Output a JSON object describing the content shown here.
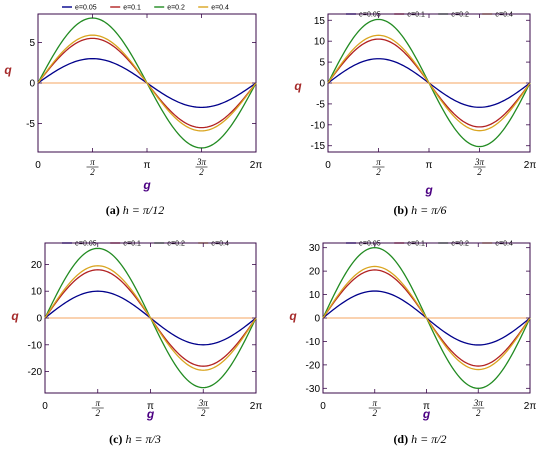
{
  "colors": {
    "axis_label": "#a52a2a",
    "x_axis_label": "#4b0082",
    "frame": "#3a0a4a",
    "zero_line": "#f4a460"
  },
  "chart_data": [
    {
      "type": "line",
      "caption_letter": "(a)",
      "caption_math": "h = π/12",
      "xlabel": "g",
      "ylabel": "q",
      "xlim": [
        0,
        6.2832
      ],
      "ylim": [
        -8.5,
        8.5
      ],
      "x_ticks": [
        0,
        1.5708,
        3.1416,
        4.7124,
        6.2832
      ],
      "x_tick_labels": [
        "0",
        "π/2",
        "π",
        "3π/2",
        "2π"
      ],
      "y_ticks": [
        -5,
        0,
        5
      ],
      "y_tick_labels": [
        "-5",
        "0",
        "5"
      ],
      "grid": false,
      "legend_position": "top",
      "series": [
        {
          "name": "e=0.05",
          "color": "#00008b",
          "amplitude": 3.0
        },
        {
          "name": "e=0.1",
          "color": "#b22222",
          "amplitude": 5.5
        },
        {
          "name": "e=0.2",
          "color": "#228b22",
          "amplitude": 8.0
        },
        {
          "name": "e=0.4",
          "color": "#daa520",
          "amplitude": 5.9
        }
      ]
    },
    {
      "type": "line",
      "caption_letter": "(b)",
      "caption_math": "h = π/6",
      "xlabel": "g",
      "ylabel": "q",
      "xlim": [
        0,
        6.2832
      ],
      "ylim": [
        -16.5,
        16.5
      ],
      "x_ticks": [
        0,
        1.5708,
        3.1416,
        4.7124,
        6.2832
      ],
      "x_tick_labels": [
        "0",
        "π/2",
        "π",
        "3π/2",
        "2π"
      ],
      "y_ticks": [
        -15,
        -10,
        -5,
        0,
        5,
        10,
        15
      ],
      "y_tick_labels": [
        "-15",
        "-10",
        "-5",
        "0",
        "5",
        "10",
        "15"
      ],
      "grid": false,
      "legend_position": "top",
      "series": [
        {
          "name": "e=0.05",
          "color": "#00008b",
          "amplitude": 5.8
        },
        {
          "name": "e=0.1",
          "color": "#b22222",
          "amplitude": 10.5
        },
        {
          "name": "e=0.2",
          "color": "#228b22",
          "amplitude": 15.2
        },
        {
          "name": "e=0.4",
          "color": "#daa520",
          "amplitude": 11.4
        }
      ]
    },
    {
      "type": "line",
      "caption_letter": "(c)",
      "caption_math": "h = π/3",
      "xlabel": "g",
      "ylabel": "q",
      "xlim": [
        0,
        6.2832
      ],
      "ylim": [
        -28,
        28
      ],
      "x_ticks": [
        0,
        1.5708,
        3.1416,
        4.7124,
        6.2832
      ],
      "x_tick_labels": [
        "0",
        "π/2",
        "π",
        "3π/2",
        "2π"
      ],
      "y_ticks": [
        -20,
        -10,
        0,
        10,
        20
      ],
      "y_tick_labels": [
        "-20",
        "-10",
        "0",
        "10",
        "20"
      ],
      "grid": false,
      "legend_position": "top",
      "series": [
        {
          "name": "e=0.05",
          "color": "#00008b",
          "amplitude": 10.0
        },
        {
          "name": "e=0.1",
          "color": "#b22222",
          "amplitude": 18.0
        },
        {
          "name": "e=0.2",
          "color": "#228b22",
          "amplitude": 26.0
        },
        {
          "name": "e=0.4",
          "color": "#daa520",
          "amplitude": 19.5
        }
      ]
    },
    {
      "type": "line",
      "caption_letter": "(d)",
      "caption_math": "h = π/2",
      "xlabel": "g",
      "ylabel": "q",
      "xlim": [
        0,
        6.2832
      ],
      "ylim": [
        -32,
        32
      ],
      "x_ticks": [
        0,
        1.5708,
        3.1416,
        4.7124,
        6.2832
      ],
      "x_tick_labels": [
        "0",
        "π/2",
        "π",
        "3π/2",
        "2π"
      ],
      "y_ticks": [
        -30,
        -20,
        -10,
        0,
        10,
        20,
        30
      ],
      "y_tick_labels": [
        "-30",
        "-20",
        "-10",
        "0",
        "10",
        "20",
        "30"
      ],
      "grid": false,
      "legend_position": "top",
      "series": [
        {
          "name": "e=0.05",
          "color": "#00008b",
          "amplitude": 11.5
        },
        {
          "name": "e=0.1",
          "color": "#b22222",
          "amplitude": 20.5
        },
        {
          "name": "e=0.2",
          "color": "#228b22",
          "amplitude": 30.0
        },
        {
          "name": "e=0.4",
          "color": "#daa520",
          "amplitude": 22.0
        }
      ]
    }
  ]
}
